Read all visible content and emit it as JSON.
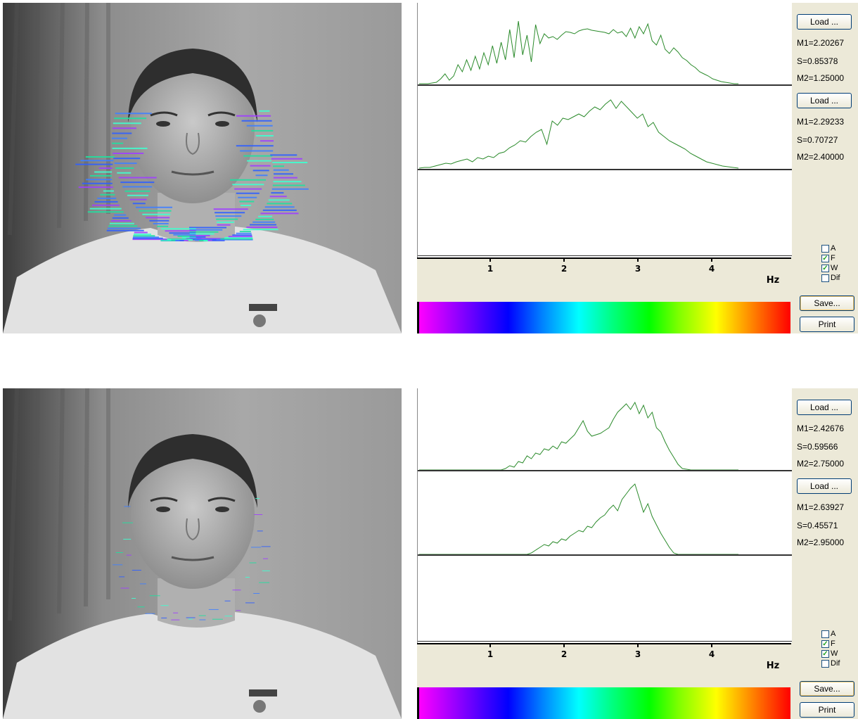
{
  "panels": [
    {
      "buttons": {
        "load_top": "Load ...",
        "load_bottom": "Load ...",
        "save": "Save...",
        "print": "Print"
      },
      "stats_top": {
        "m1": "M1=2.20267",
        "s": "S=0.85378",
        "m2": "M2=1.25000"
      },
      "stats_bottom": {
        "m1": "M1=2.29233",
        "s": "S=0.70727",
        "m2": "M2=2.40000"
      },
      "checkboxes": [
        {
          "label": "A",
          "checked": false
        },
        {
          "label": "F",
          "checked": true
        },
        {
          "label": "W",
          "checked": true
        },
        {
          "label": "Dif",
          "checked": false
        }
      ],
      "axis": {
        "ticks": [
          "1",
          "2",
          "3",
          "4"
        ],
        "unit": "Hz"
      },
      "spectrum_top": [
        1,
        1,
        1,
        2,
        3,
        8,
        15,
        6,
        12,
        28,
        18,
        35,
        20,
        40,
        22,
        45,
        28,
        55,
        30,
        60,
        35,
        78,
        38,
        90,
        42,
        70,
        32,
        85,
        58,
        72,
        66,
        68,
        64,
        70,
        75,
        74,
        72,
        76,
        78,
        79,
        77,
        76,
        75,
        74,
        72,
        78,
        73,
        75,
        68,
        80,
        66,
        82,
        72,
        86,
        62,
        56,
        70,
        50,
        44,
        52,
        46,
        38,
        34,
        28,
        24,
        18,
        15,
        12,
        8,
        6,
        4,
        3,
        2,
        1,
        1
      ],
      "spectrum_bottom": [
        1,
        2,
        2,
        4,
        6,
        8,
        7,
        10,
        12,
        14,
        10,
        16,
        14,
        18,
        16,
        22,
        24,
        30,
        34,
        40,
        38,
        46,
        52,
        56,
        35,
        68,
        62,
        72,
        70,
        74,
        78,
        74,
        82,
        88,
        84,
        92,
        98,
        86,
        96,
        88,
        80,
        72,
        78,
        60,
        66,
        52,
        46,
        40,
        36,
        32,
        28,
        22,
        18,
        14,
        10,
        8,
        6,
        4,
        3,
        2,
        1
      ],
      "spectrum_third": []
    },
    {
      "buttons": {
        "load_top": "Load ...",
        "load_bottom": "Load ...",
        "save": "Save...",
        "print": "Print"
      },
      "stats_top": {
        "m1": "M1=2.42676",
        "s": "S=0.59566",
        "m2": "M2=2.75000"
      },
      "stats_bottom": {
        "m1": "M1=2.63927",
        "s": "S=0.45571",
        "m2": "M2=2.95000"
      },
      "checkboxes": [
        {
          "label": "A",
          "checked": false
        },
        {
          "label": "F",
          "checked": true
        },
        {
          "label": "W",
          "checked": true
        },
        {
          "label": "Dif",
          "checked": false
        }
      ],
      "axis": {
        "ticks": [
          "1",
          "2",
          "3",
          "4"
        ],
        "unit": "Hz"
      },
      "spectrum_top": [
        0,
        0,
        0,
        0,
        0,
        0,
        0,
        0,
        0,
        0,
        0,
        0,
        0,
        0,
        0,
        0,
        0,
        0,
        0,
        0,
        2,
        6,
        4,
        12,
        10,
        20,
        16,
        24,
        22,
        30,
        28,
        34,
        30,
        40,
        38,
        44,
        50,
        60,
        70,
        55,
        48,
        50,
        52,
        56,
        60,
        72,
        82,
        88,
        94,
        86,
        96,
        80,
        92,
        74,
        82,
        60,
        54,
        40,
        28,
        18,
        8,
        2,
        1,
        0,
        0,
        0,
        0,
        0,
        0,
        0,
        0,
        0,
        0,
        0,
        0
      ],
      "spectrum_bottom": [
        0,
        0,
        0,
        0,
        0,
        0,
        0,
        0,
        0,
        0,
        0,
        0,
        0,
        0,
        0,
        0,
        0,
        0,
        0,
        0,
        0,
        0,
        0,
        0,
        0,
        0,
        2,
        6,
        10,
        14,
        12,
        18,
        16,
        22,
        20,
        26,
        30,
        34,
        32,
        40,
        38,
        46,
        52,
        56,
        64,
        70,
        62,
        78,
        86,
        94,
        100,
        80,
        60,
        72,
        54,
        42,
        30,
        20,
        10,
        2,
        0,
        0,
        0,
        0,
        0,
        0,
        0,
        0,
        0,
        0,
        0,
        0,
        0,
        0,
        0
      ],
      "spectrum_third": []
    }
  ],
  "colors": {
    "trace": "#2a8a2a",
    "background": "#ece9d8",
    "check": "#21a121"
  },
  "icons": [
    "checkbox-icon",
    "checkmark-icon"
  ]
}
